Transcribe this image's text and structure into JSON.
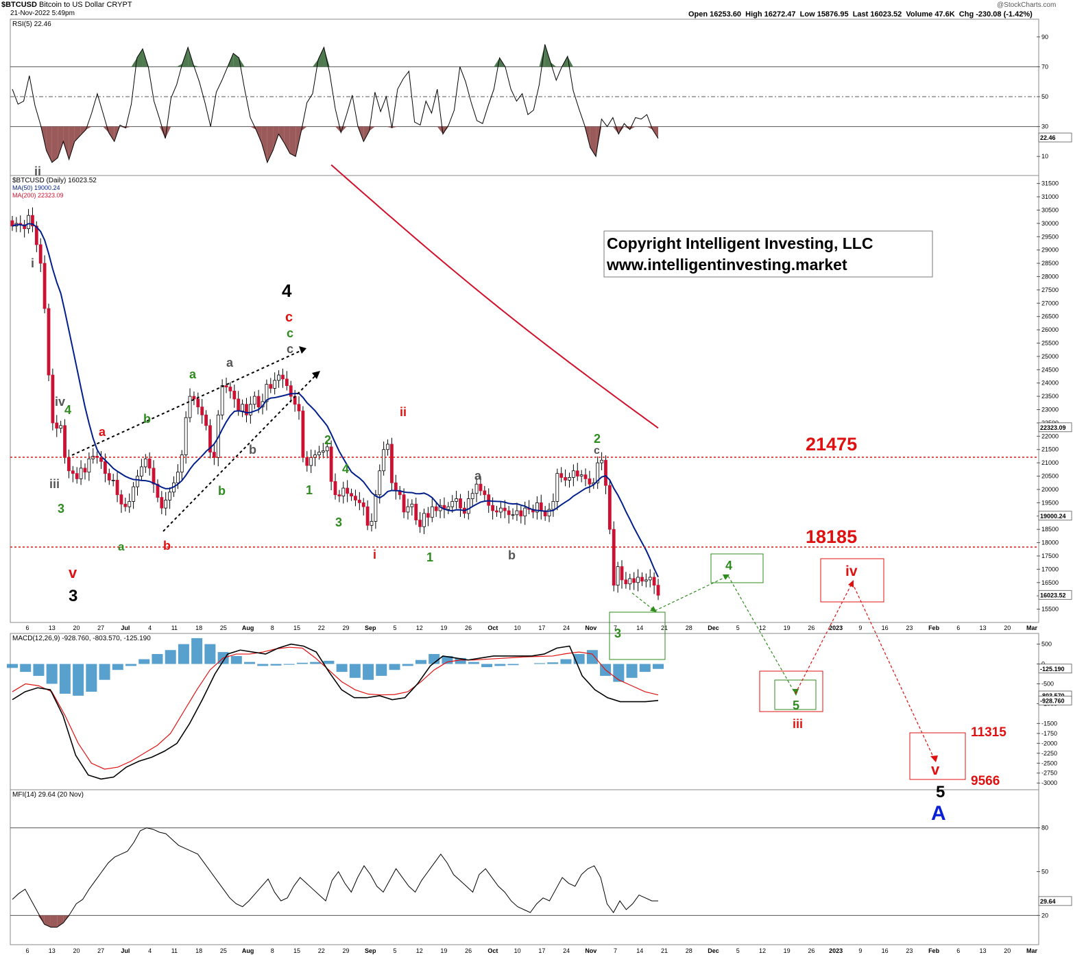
{
  "header": {
    "symbol": "$BTCUSD",
    "name": "Bitcoin to US Dollar",
    "exchange": "CRYPT",
    "datetime": "21-Nov-2022 5:49pm",
    "quote": "Open 16253.60  High 16272.47  Low 15876.95  Last 16023.52  Volume 47.6K  Chg -230.08 (-1.42%)",
    "source": "@StockCharts.com"
  },
  "copyright": {
    "line1": "Copyright Intelligent Investing, LLC",
    "line2": "www.intelligentinvesting.market"
  },
  "colors": {
    "up": "#ffffff",
    "down": "#cc1133",
    "ma50": "#001f8c",
    "ma200": "#d2102c",
    "wave_red": "#e01010",
    "wave_green": "#2e8b1e",
    "wave_black": "#000000",
    "wave_gray": "#555555",
    "wave_blue": "#0a1fd6",
    "hist": "#3b8fc4",
    "rsi_fill_up": "#4f7a4f",
    "rsi_fill_down": "#9b5a5a"
  },
  "chart_data": [
    {
      "panel": "RSI",
      "type": "line",
      "label": "RSI(5) 22.46",
      "last": "22.46",
      "ylim": [
        0,
        100
      ],
      "ticks": [
        "90",
        "70",
        "50",
        "30",
        "10"
      ],
      "reference_lines": [
        70,
        50,
        30
      ],
      "values": [
        55,
        45,
        47,
        64,
        44,
        31,
        14,
        6,
        9,
        20,
        8,
        20,
        24,
        28,
        39,
        52,
        39,
        26,
        20,
        31,
        29,
        45,
        76,
        82,
        70,
        47,
        35,
        22,
        49,
        58,
        72,
        83,
        71,
        60,
        46,
        30,
        53,
        61,
        70,
        79,
        76,
        55,
        36,
        28,
        19,
        6,
        14,
        25,
        19,
        12,
        10,
        27,
        46,
        52,
        75,
        83,
        66,
        42,
        26,
        38,
        51,
        30,
        20,
        27,
        53,
        40,
        50,
        29,
        55,
        62,
        67,
        33,
        31,
        47,
        39,
        55,
        25,
        31,
        41,
        70,
        60,
        46,
        34,
        32,
        44,
        55,
        76,
        70,
        55,
        47,
        52,
        38,
        41,
        58,
        85,
        73,
        61,
        70,
        77,
        54,
        42,
        31,
        16,
        10,
        35,
        30,
        36,
        25,
        32,
        28,
        36,
        35,
        38,
        28,
        22
      ]
    },
    {
      "panel": "Price",
      "type": "candlestick",
      "label": "$BTCUSD (Daily) 16023.52",
      "ma50_label": "MA(50) 19000.24",
      "ma200_label": "MA(200) 22323.09",
      "last_price": "16023.52",
      "ma50_last": "19000.24",
      "ma200_last": "22323.09",
      "ylim": [
        15000,
        31800
      ],
      "yticks": [
        "31500",
        "31000",
        "30500",
        "30000",
        "29500",
        "29000",
        "28500",
        "28000",
        "27500",
        "27000",
        "26500",
        "26000",
        "25500",
        "25000",
        "24500",
        "24000",
        "23500",
        "23000",
        "22500",
        "22000",
        "21500",
        "21000",
        "20500",
        "20000",
        "19500",
        "19000",
        "18500",
        "18000",
        "17500",
        "17000",
        "16500",
        "16000",
        "15500"
      ],
      "x_tick_labels": [
        "6",
        "13",
        "20",
        "27",
        "Jul",
        "4",
        "11",
        "18",
        "25",
        "Aug",
        "8",
        "15",
        "22",
        "29",
        "Sep",
        "5",
        "12",
        "19",
        "26",
        "Oct",
        "10",
        "17",
        "24",
        "Nov",
        "7",
        "14",
        "21",
        "28",
        "Dec",
        "5",
        "12",
        "19",
        "26",
        "2023",
        "9",
        "16",
        "23",
        "Feb",
        "6",
        "13",
        "20",
        "Mar"
      ],
      "closes": [
        29900,
        30000,
        29950,
        29800,
        30300,
        29900,
        29200,
        28500,
        26800,
        24300,
        22500,
        22300,
        22400,
        21200,
        20700,
        20600,
        20400,
        20800,
        20650,
        21150,
        21250,
        21200,
        21050,
        20600,
        20350,
        20350,
        19800,
        19450,
        19350,
        19550,
        20100,
        20500,
        20850,
        21150,
        20800,
        20200,
        19700,
        19300,
        19600,
        19900,
        20250,
        20650,
        21300,
        22700,
        23500,
        23400,
        23100,
        22800,
        22400,
        21400,
        21200,
        22800,
        23900,
        23850,
        23700,
        23400,
        22950,
        23200,
        22800,
        23200,
        23500,
        23100,
        23300,
        23950,
        23800,
        24100,
        24300,
        24150,
        23900,
        23500,
        23200,
        22950,
        21200,
        20900,
        21200,
        21300,
        21400,
        21450,
        21600,
        20300,
        19800,
        19750,
        20050,
        19850,
        19750,
        19600,
        19500,
        19350,
        18650,
        18800,
        19800,
        20700,
        21500,
        21700,
        20250,
        19950,
        19800,
        19150,
        19350,
        19450,
        18850,
        18600,
        19100,
        18950,
        19350,
        19200,
        19400,
        19250,
        19350,
        19550,
        19650,
        19300,
        19100,
        19650,
        19850,
        20200,
        19950,
        19800,
        19400,
        19200,
        19150,
        19300,
        19200,
        19050,
        19050,
        19200,
        19000,
        19300,
        19250,
        19150,
        19500,
        19200,
        19000,
        19250,
        19550,
        20600,
        20450,
        20350,
        20450,
        20700,
        20500,
        20550,
        20400,
        20200,
        20250,
        21000,
        21100,
        20150,
        18500,
        16400,
        17100,
        16600,
        16450,
        16650,
        16500,
        16700,
        16550,
        16600,
        16700,
        16400,
        16023
      ]
    },
    {
      "panel": "MACD",
      "type": "line+histogram",
      "label": "MACD(12,26,9) -928.760, -803.570, -125.190",
      "macd_last": "-928.760",
      "signal_last": "-803.570",
      "hist_last": "-125.190",
      "ylim": [
        -3100,
        700
      ],
      "yticks": [
        "500",
        "0",
        "-500",
        "-1000",
        "-1500",
        "-1750",
        "-2000",
        "-2250",
        "-2500",
        "-2750",
        "-3000"
      ],
      "right_labels": [
        "-125.190",
        "-803.570",
        "-928.760"
      ],
      "macd": [
        -900,
        -700,
        -600,
        -650,
        -1300,
        -2300,
        -2800,
        -2900,
        -2850,
        -2600,
        -2450,
        -2350,
        -2200,
        -2000,
        -1500,
        -900,
        -250,
        250,
        350,
        300,
        250,
        400,
        500,
        450,
        300,
        -200,
        -650,
        -850,
        -850,
        -800,
        -900,
        -850,
        -500,
        -50,
        200,
        150,
        100,
        150,
        200,
        200,
        200,
        200,
        250,
        400,
        450,
        -300,
        -650,
        -850,
        -950,
        -950,
        -950,
        -920
      ],
      "signal": [
        -700,
        -500,
        -550,
        -700,
        -1300,
        -2000,
        -2500,
        -2650,
        -2600,
        -2450,
        -2250,
        -2050,
        -1750,
        -1200,
        -650,
        -150,
        150,
        250,
        250,
        300,
        380,
        420,
        400,
        150,
        -150,
        -450,
        -650,
        -760,
        -780,
        -770,
        -700,
        -450,
        -150,
        50,
        100,
        100,
        120,
        140,
        160,
        180,
        190,
        200,
        260,
        300,
        250,
        -150,
        -400,
        -550,
        -700,
        -780
      ],
      "histogram": [
        -100,
        -200,
        -300,
        -500,
        -750,
        -800,
        -700,
        -400,
        -150,
        -50,
        120,
        250,
        350,
        500,
        650,
        500,
        300,
        200,
        50,
        -50,
        -40,
        -20,
        30,
        50,
        80,
        -200,
        -350,
        -400,
        -300,
        -150,
        -50,
        100,
        250,
        200,
        150,
        50,
        -80,
        -50,
        -30,
        0,
        20,
        40,
        120,
        250,
        350,
        -300,
        -450,
        -350,
        -200,
        -125
      ]
    },
    {
      "panel": "MFI",
      "type": "line",
      "label": "MFI(14) 29.64 (20 Nov)",
      "last": "29.64",
      "ylim": [
        0,
        100
      ],
      "yticks": [
        "80",
        "50",
        "20"
      ],
      "reference_lines": [
        80,
        20
      ],
      "values": [
        31,
        35,
        38,
        30,
        22,
        14,
        12,
        12,
        15,
        21,
        28,
        31,
        38,
        44,
        50,
        56,
        60,
        62,
        64,
        70,
        78,
        80,
        79,
        77,
        76,
        72,
        68,
        66,
        64,
        62,
        56,
        50,
        44,
        38,
        32,
        28,
        26,
        30,
        35,
        40,
        45,
        36,
        30,
        32,
        40,
        46,
        42,
        38,
        34,
        30,
        44,
        50,
        42,
        36,
        46,
        54,
        48,
        40,
        36,
        44,
        52,
        46,
        40,
        36,
        44,
        50,
        56,
        62,
        56,
        48,
        44,
        40,
        36,
        48,
        52,
        46,
        40,
        36,
        30,
        26,
        24,
        22,
        28,
        32,
        30,
        38,
        46,
        42,
        40,
        48,
        52,
        54,
        46,
        28,
        22,
        30,
        24,
        28,
        34,
        32,
        30,
        30
      ]
    }
  ],
  "annotations": {
    "levels": [
      "21475",
      "18185"
    ],
    "targets": [
      "11315",
      "9566"
    ],
    "waves": {
      "w_4_green": "4",
      "w_iv_gray": "iv",
      "w_iii_gray": "iii",
      "w_3_green_a": "3",
      "w_i_gray": "i",
      "w_ii_gray": "ii",
      "w_v_red": "v",
      "w_3_black": "3",
      "w_a_green_low": "a",
      "w_b_red_low": "b",
      "w_a_red": "a",
      "w_b_green_a": "b",
      "w_a_green_top": "a",
      "w_b_green_mid": "b",
      "w_a_gray_top": "a",
      "w_b_gray": "b",
      "w_4_black": "4",
      "w_c_red": "c",
      "w_c_green": "c",
      "w_c_gray": "c",
      "w_2_green_a": "2",
      "w_1_green_a": "1",
      "w_4_green_b": "4",
      "w_3_green_b": "3",
      "w_ii_red": "ii",
      "w_i_red": "i",
      "w_1_green_b": "1",
      "w_a_gray_oct": "a",
      "w_b_gray_oct": "b",
      "w_2_green_nov": "2",
      "w_c_gray_nov": "c",
      "w_3_green_nov": "3",
      "w_4_box": "4",
      "w_5_box": "5",
      "w_iii_red": "iii",
      "w_iv_red": "iv",
      "w_v_red_final": "v",
      "w_5_black": "5",
      "w_A_blue": "A"
    }
  }
}
